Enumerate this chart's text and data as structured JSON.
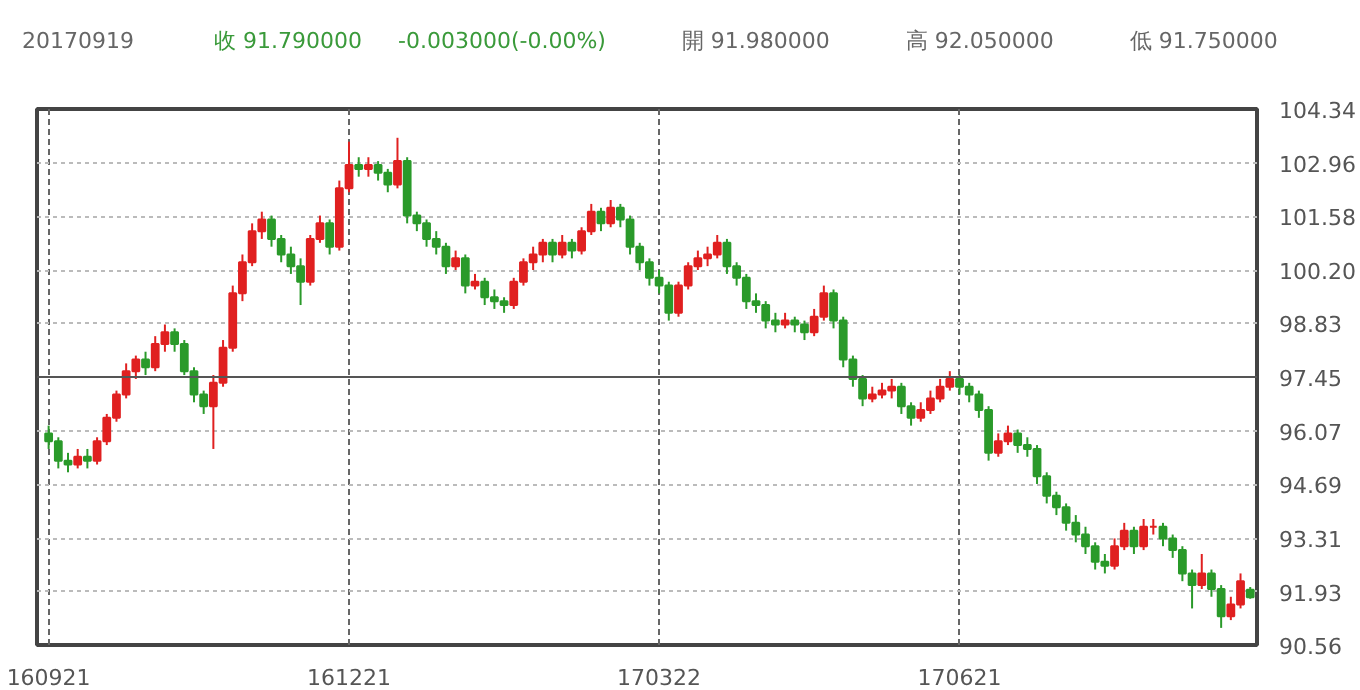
{
  "chart_data": {
    "type": "candlestick",
    "title": "20170919",
    "annotations": [
      "收 91.790000",
      "-0.003000(-0.00%)",
      "開 91.980000",
      "高 92.050000",
      "低 91.750000"
    ],
    "categories": [
      "160921",
      null,
      null,
      null,
      null,
      null,
      null,
      null,
      null,
      null,
      null,
      null,
      null,
      null,
      null,
      null,
      null,
      null,
      null,
      null,
      null,
      null,
      null,
      null,
      null,
      null,
      null,
      null,
      null,
      null,
      null,
      "161221",
      null,
      null,
      null,
      null,
      null,
      null,
      null,
      null,
      null,
      null,
      null,
      null,
      null,
      null,
      null,
      null,
      null,
      null,
      null,
      null,
      null,
      null,
      null,
      null,
      null,
      null,
      null,
      null,
      null,
      null,
      null,
      "170322",
      null,
      null,
      null,
      null,
      null,
      null,
      null,
      null,
      null,
      null,
      null,
      null,
      null,
      null,
      null,
      null,
      null,
      null,
      null,
      null,
      null,
      null,
      null,
      null,
      null,
      null,
      null,
      null,
      null,
      null,
      "170621",
      null,
      null,
      null,
      null,
      null,
      null,
      null,
      null,
      null,
      null,
      null,
      null,
      null,
      null,
      null,
      null,
      null,
      null,
      null,
      null,
      null,
      null,
      null,
      null,
      null,
      null,
      null,
      null,
      null,
      null
    ],
    "ohlc": [
      [
        96.0,
        96.2,
        95.6,
        95.8
      ],
      [
        95.8,
        95.9,
        95.1,
        95.3
      ],
      [
        95.3,
        95.5,
        95.0,
        95.2
      ],
      [
        95.2,
        95.6,
        95.1,
        95.4
      ],
      [
        95.4,
        95.6,
        95.1,
        95.3
      ],
      [
        95.3,
        95.9,
        95.2,
        95.8
      ],
      [
        95.8,
        96.5,
        95.7,
        96.4
      ],
      [
        96.4,
        97.1,
        96.3,
        97.0
      ],
      [
        97.0,
        97.8,
        96.9,
        97.6
      ],
      [
        97.6,
        98.0,
        97.4,
        97.9
      ],
      [
        97.9,
        98.1,
        97.5,
        97.7
      ],
      [
        97.7,
        98.5,
        97.6,
        98.3
      ],
      [
        98.3,
        98.8,
        98.1,
        98.6
      ],
      [
        98.6,
        98.7,
        98.1,
        98.3
      ],
      [
        98.3,
        98.4,
        97.5,
        97.6
      ],
      [
        97.6,
        97.7,
        96.8,
        97.0
      ],
      [
        97.0,
        97.1,
        96.5,
        96.7
      ],
      [
        96.7,
        97.5,
        95.6,
        97.3
      ],
      [
        97.3,
        98.4,
        97.2,
        98.2
      ],
      [
        98.2,
        99.8,
        98.1,
        99.6
      ],
      [
        99.6,
        100.6,
        99.4,
        100.4
      ],
      [
        100.4,
        101.4,
        100.3,
        101.2
      ],
      [
        101.2,
        101.7,
        101.0,
        101.5
      ],
      [
        101.5,
        101.6,
        100.8,
        101.0
      ],
      [
        101.0,
        101.1,
        100.4,
        100.6
      ],
      [
        100.6,
        100.8,
        100.1,
        100.3
      ],
      [
        100.3,
        100.5,
        99.3,
        99.9
      ],
      [
        99.9,
        101.1,
        99.8,
        101.0
      ],
      [
        101.0,
        101.6,
        100.9,
        101.4
      ],
      [
        101.4,
        101.5,
        100.6,
        100.8
      ],
      [
        100.8,
        102.5,
        100.7,
        102.3
      ],
      [
        102.3,
        103.5,
        102.2,
        102.9
      ],
      [
        102.9,
        103.1,
        102.6,
        102.8
      ],
      [
        102.8,
        103.1,
        102.6,
        102.9
      ],
      [
        102.9,
        103.0,
        102.5,
        102.7
      ],
      [
        102.7,
        102.8,
        102.2,
        102.4
      ],
      [
        102.4,
        103.6,
        102.3,
        103.0
      ],
      [
        103.0,
        103.1,
        101.4,
        101.6
      ],
      [
        101.6,
        101.7,
        101.2,
        101.4
      ],
      [
        101.4,
        101.5,
        100.8,
        101.0
      ],
      [
        101.0,
        101.2,
        100.6,
        100.8
      ],
      [
        100.8,
        100.9,
        100.1,
        100.3
      ],
      [
        100.3,
        100.7,
        100.2,
        100.5
      ],
      [
        100.5,
        100.6,
        99.6,
        99.8
      ],
      [
        99.8,
        100.1,
        99.7,
        99.9
      ],
      [
        99.9,
        100.0,
        99.3,
        99.5
      ],
      [
        99.5,
        99.7,
        99.2,
        99.4
      ],
      [
        99.4,
        99.5,
        99.1,
        99.3
      ],
      [
        99.3,
        100.0,
        99.2,
        99.9
      ],
      [
        99.9,
        100.5,
        99.8,
        100.4
      ],
      [
        100.4,
        100.8,
        100.2,
        100.6
      ],
      [
        100.6,
        101.0,
        100.4,
        100.9
      ],
      [
        100.9,
        101.0,
        100.4,
        100.6
      ],
      [
        100.6,
        101.1,
        100.5,
        100.9
      ],
      [
        100.9,
        101.0,
        100.5,
        100.7
      ],
      [
        100.7,
        101.3,
        100.6,
        101.2
      ],
      [
        101.2,
        101.9,
        101.1,
        101.7
      ],
      [
        101.7,
        101.8,
        101.2,
        101.4
      ],
      [
        101.4,
        102.0,
        101.3,
        101.8
      ],
      [
        101.8,
        101.9,
        101.3,
        101.5
      ],
      [
        101.5,
        101.6,
        100.6,
        100.8
      ],
      [
        100.8,
        100.9,
        100.2,
        100.4
      ],
      [
        100.4,
        100.5,
        99.8,
        100.0
      ],
      [
        100.0,
        100.2,
        99.6,
        99.8
      ],
      [
        99.8,
        99.9,
        98.9,
        99.1
      ],
      [
        99.1,
        99.9,
        99.0,
        99.8
      ],
      [
        99.8,
        100.4,
        99.7,
        100.3
      ],
      [
        100.3,
        100.7,
        100.2,
        100.5
      ],
      [
        100.5,
        100.8,
        100.3,
        100.6
      ],
      [
        100.6,
        101.1,
        100.5,
        100.9
      ],
      [
        100.9,
        101.0,
        100.1,
        100.3
      ],
      [
        100.3,
        100.4,
        99.8,
        100.0
      ],
      [
        100.0,
        100.1,
        99.2,
        99.4
      ],
      [
        99.4,
        99.6,
        99.1,
        99.3
      ],
      [
        99.3,
        99.4,
        98.7,
        98.9
      ],
      [
        98.9,
        99.1,
        98.6,
        98.8
      ],
      [
        98.8,
        99.1,
        98.7,
        98.9
      ],
      [
        98.9,
        99.0,
        98.6,
        98.8
      ],
      [
        98.8,
        98.9,
        98.4,
        98.6
      ],
      [
        98.6,
        99.2,
        98.5,
        99.0
      ],
      [
        99.0,
        99.8,
        98.9,
        99.6
      ],
      [
        99.6,
        99.7,
        98.7,
        98.9
      ],
      [
        98.9,
        99.0,
        97.7,
        97.9
      ],
      [
        97.9,
        98.0,
        97.2,
        97.4
      ],
      [
        97.4,
        97.5,
        96.7,
        96.9
      ],
      [
        96.9,
        97.2,
        96.8,
        97.0
      ],
      [
        97.0,
        97.3,
        96.9,
        97.1
      ],
      [
        97.1,
        97.4,
        96.9,
        97.2
      ],
      [
        97.2,
        97.3,
        96.5,
        96.7
      ],
      [
        96.7,
        96.8,
        96.2,
        96.4
      ],
      [
        96.4,
        96.8,
        96.3,
        96.6
      ],
      [
        96.6,
        97.1,
        96.5,
        96.9
      ],
      [
        96.9,
        97.4,
        96.8,
        97.2
      ],
      [
        97.2,
        97.6,
        97.1,
        97.4
      ],
      [
        97.4,
        97.5,
        97.0,
        97.2
      ],
      [
        97.2,
        97.3,
        96.8,
        97.0
      ],
      [
        97.0,
        97.1,
        96.4,
        96.6
      ],
      [
        96.6,
        96.7,
        95.3,
        95.5
      ],
      [
        95.5,
        96.0,
        95.4,
        95.8
      ],
      [
        95.8,
        96.2,
        95.7,
        96.0
      ],
      [
        96.0,
        96.1,
        95.5,
        95.7
      ],
      [
        95.7,
        95.9,
        95.4,
        95.6
      ],
      [
        95.6,
        95.7,
        94.7,
        94.9
      ],
      [
        94.9,
        95.0,
        94.2,
        94.4
      ],
      [
        94.4,
        94.5,
        93.9,
        94.1
      ],
      [
        94.1,
        94.2,
        93.5,
        93.7
      ],
      [
        93.7,
        93.9,
        93.2,
        93.4
      ],
      [
        93.4,
        93.6,
        92.9,
        93.1
      ],
      [
        93.1,
        93.2,
        92.5,
        92.7
      ],
      [
        92.7,
        92.9,
        92.4,
        92.6
      ],
      [
        92.6,
        93.3,
        92.5,
        93.1
      ],
      [
        93.1,
        93.7,
        93.0,
        93.5
      ],
      [
        93.5,
        93.6,
        92.9,
        93.1
      ],
      [
        93.1,
        93.8,
        93.0,
        93.6
      ],
      [
        93.6,
        93.8,
        93.4,
        93.6
      ],
      [
        93.6,
        93.7,
        93.1,
        93.3
      ],
      [
        93.3,
        93.4,
        92.8,
        93.0
      ],
      [
        93.0,
        93.1,
        92.2,
        92.4
      ],
      [
        92.4,
        92.5,
        91.5,
        92.1
      ],
      [
        92.1,
        92.9,
        92.0,
        92.4
      ],
      [
        92.4,
        92.5,
        91.8,
        92.0
      ],
      [
        92.0,
        92.1,
        91.0,
        91.3
      ],
      [
        91.3,
        91.8,
        91.2,
        91.6
      ],
      [
        91.6,
        92.4,
        91.5,
        92.2
      ],
      [
        91.98,
        92.05,
        91.75,
        91.79
      ]
    ],
    "ylim": [
      90.56,
      104.34
    ],
    "yticks": [
      90.56,
      91.93,
      93.31,
      94.69,
      96.07,
      97.45,
      98.83,
      {
        "value": 100.2,
        "label": "100.20"
      },
      101.58,
      102.96,
      104.34
    ],
    "ref_lines": [
      {
        "axis": "y",
        "value": 97.45,
        "color": "#555555"
      }
    ],
    "grid": true
  }
}
